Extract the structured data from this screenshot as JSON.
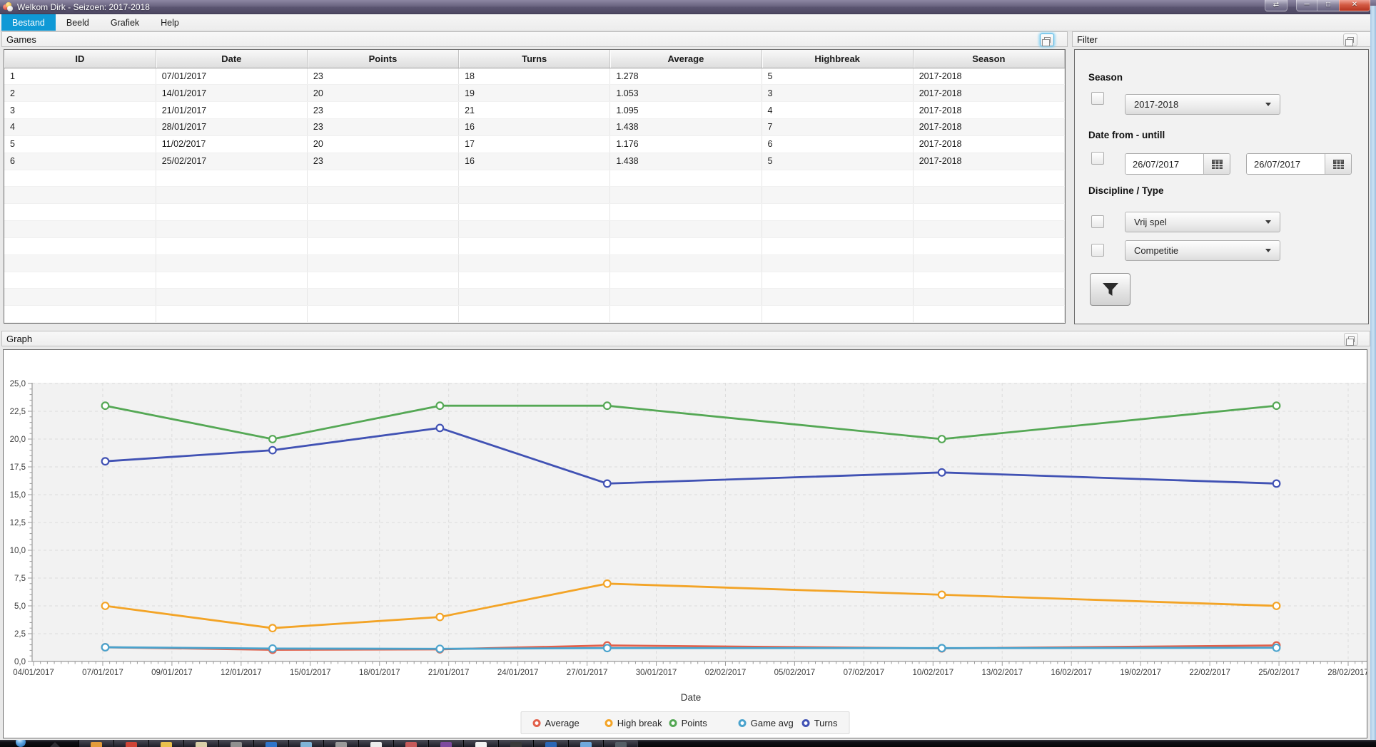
{
  "window": {
    "title": "Welkom Dirk - Seizoen: 2017-2018"
  },
  "menu": {
    "items": [
      {
        "label": "Bestand",
        "active": true
      },
      {
        "label": "Beeld",
        "active": false
      },
      {
        "label": "Grafiek",
        "active": false
      },
      {
        "label": "Help",
        "active": false
      }
    ]
  },
  "games": {
    "panel_title": "Games",
    "table": {
      "headers": [
        "ID",
        "Date",
        "Points",
        "Turns",
        "Average",
        "Highbreak",
        "Season"
      ],
      "rows": [
        [
          "1",
          "07/01/2017",
          "23",
          "18",
          "1.278",
          "5",
          "2017-2018"
        ],
        [
          "2",
          "14/01/2017",
          "20",
          "19",
          "1.053",
          "3",
          "2017-2018"
        ],
        [
          "3",
          "21/01/2017",
          "23",
          "21",
          "1.095",
          "4",
          "2017-2018"
        ],
        [
          "4",
          "28/01/2017",
          "23",
          "16",
          "1.438",
          "7",
          "2017-2018"
        ],
        [
          "5",
          "11/02/2017",
          "20",
          "17",
          "1.176",
          "6",
          "2017-2018"
        ],
        [
          "6",
          "25/02/2017",
          "23",
          "16",
          "1.438",
          "5",
          "2017-2018"
        ]
      ],
      "visible_row_slots": 15
    }
  },
  "filter": {
    "panel_title": "Filter",
    "season_label": "Season",
    "season_value": "2017-2018",
    "date_label": "Date from - untill",
    "date_from": "26/07/2017",
    "date_to": "26/07/2017",
    "discipline_label": "Discipline / Type",
    "discipline_value": "Vrij spel",
    "type_value": "Competitie"
  },
  "graph": {
    "panel_title": "Graph"
  },
  "chart_data": {
    "type": "line",
    "title": "",
    "xlabel": "Date",
    "ylabel": "",
    "ylim": [
      0,
      25
    ],
    "ytick_step": 2.5,
    "grid": true,
    "legend_position": "bottom-center",
    "x_tick_labels": [
      "04/01/2017",
      "07/01/2017",
      "09/01/2017",
      "12/01/2017",
      "15/01/2017",
      "18/01/2017",
      "21/01/2017",
      "24/01/2017",
      "27/01/2017",
      "30/01/2017",
      "02/02/2017",
      "05/02/2017",
      "07/02/2017",
      "10/02/2017",
      "13/02/2017",
      "16/02/2017",
      "19/02/2017",
      "22/02/2017",
      "25/02/2017",
      "28/02/2017"
    ],
    "x_day_range": [
      0,
      55
    ],
    "x_dates": [
      "07/01/2017",
      "14/01/2017",
      "21/01/2017",
      "28/01/2017",
      "11/02/2017",
      "25/02/2017"
    ],
    "x_days": [
      3,
      10,
      17,
      24,
      38,
      52
    ],
    "series": [
      {
        "name": "Average",
        "color": "#e2604a",
        "values": [
          1.278,
          1.053,
          1.095,
          1.438,
          1.176,
          1.438
        ]
      },
      {
        "name": "High break",
        "color": "#f3a427",
        "values": [
          5,
          3,
          4,
          7,
          6,
          5
        ]
      },
      {
        "name": "Points",
        "color": "#55a855",
        "values": [
          23,
          20,
          23,
          23,
          20,
          23
        ]
      },
      {
        "name": "Game avg",
        "color": "#4aa3cd",
        "values": [
          1.278,
          1.162,
          1.138,
          1.203,
          1.198,
          1.234
        ]
      },
      {
        "name": "Turns",
        "color": "#4152b4",
        "values": [
          18,
          19,
          21,
          16,
          17,
          16
        ]
      }
    ]
  },
  "colors": {
    "menu_active": "#0f99d6",
    "plot_background": "#f2f2f2",
    "gridline": "#dcdcdc",
    "axis": "#9a9a9a"
  },
  "taskbar": {
    "button_colors": [
      "#e39b3a",
      "#cf4436",
      "#e9c04c",
      "#d9cfa8",
      "#8f8f8f",
      "#2f74c9",
      "#7fb3d6",
      "#9a9a9a",
      "#ececec",
      "#c65a5a",
      "#7d4a9e",
      "#f2f2f2",
      "#3a3a3a",
      "#2b66b5",
      "#6fa8dc",
      "#555e66"
    ]
  }
}
